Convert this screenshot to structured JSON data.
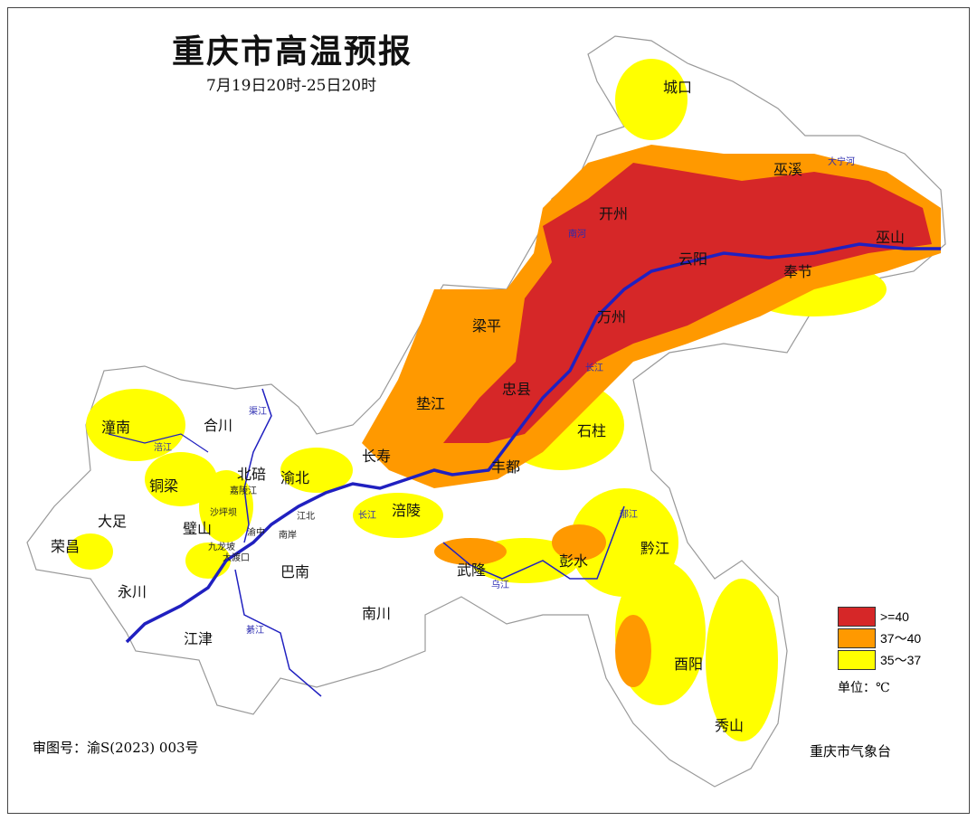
{
  "title": "重庆市高温预报",
  "subtitle": "7月19日20时-25日20时",
  "legend": {
    "items": [
      {
        "label": ">=40",
        "color": "#d62728"
      },
      {
        "label": "37～40",
        "color": "#ff9900"
      },
      {
        "label": "35～37",
        "color": "#ffff00"
      }
    ],
    "unit": "单位：℃"
  },
  "approval_number": "审图号：渝S(2023) 003号",
  "issuer": "重庆市气象台",
  "colors": {
    "river": "#2020c0",
    "boundary": "#aaaaaa"
  },
  "districts": [
    "城口",
    "巫溪",
    "巫山",
    "开州",
    "云阳",
    "奉节",
    "万州",
    "梁平",
    "垫江",
    "忠县",
    "石柱",
    "长寿",
    "丰都",
    "涪陵",
    "武隆",
    "彭水",
    "黔江",
    "酉阳",
    "秀山",
    "潼南",
    "合川",
    "铜梁",
    "北碚",
    "渝北",
    "大足",
    "璧山",
    "荣昌",
    "永川",
    "巴南",
    "南川",
    "江津"
  ],
  "small_labels": [
    "嘉陵江",
    "沙坪坝",
    "渝中",
    "南岸",
    "江北",
    "九龙坡",
    "大渡口"
  ],
  "rivers": [
    "渠江",
    "涪江",
    "大宁河",
    "南河",
    "长江",
    "长江",
    "乌江",
    "郁江",
    "綦江"
  ]
}
